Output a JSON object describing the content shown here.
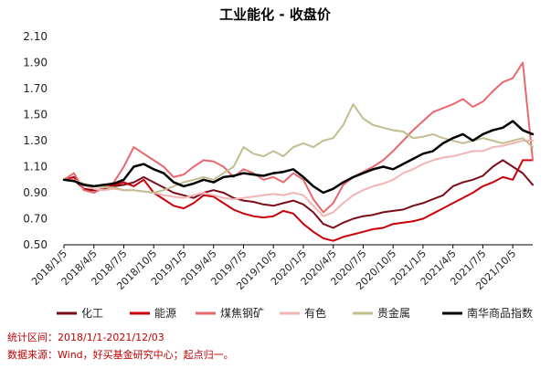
{
  "chart_data": {
    "type": "line",
    "title": "工业能化 - 收盘价",
    "xlabel": "",
    "ylabel": "",
    "ylim": [
      0.5,
      2.1
    ],
    "yticks": [
      "2.10",
      "1.90",
      "1.70",
      "1.50",
      "1.30",
      "1.10",
      "0.90",
      "0.70",
      "0.50"
    ],
    "x_tick_labels": [
      "2018/1/5",
      "2018/4/5",
      "2018/7/5",
      "2018/10/5",
      "2019/1/5",
      "2019/4/5",
      "2019/7/5",
      "2019/10/5",
      "2020/1/5",
      "2020/4/5",
      "2020/7/5",
      "2020/10/5",
      "2021/1/5",
      "2021/4/5",
      "2021/7/5",
      "2021/10/5"
    ],
    "x_months": [
      0,
      3,
      6,
      9,
      12,
      15,
      18,
      21,
      24,
      27,
      30,
      33,
      36,
      39,
      42,
      45
    ],
    "x_range_months": [
      0,
      47
    ],
    "grid": false,
    "legend_position": "bottom",
    "series": [
      {
        "name": "化工",
        "color": "#7b0c1a",
        "width": 2,
        "x": [
          0,
          1,
          2,
          3,
          4,
          5,
          6,
          7,
          8,
          9,
          10,
          11,
          12,
          13,
          14,
          15,
          16,
          17,
          18,
          19,
          20,
          21,
          22,
          23,
          24,
          25,
          26,
          27,
          28,
          29,
          30,
          31,
          32,
          33,
          34,
          35,
          36,
          37,
          38,
          39,
          40,
          41,
          42,
          43,
          44,
          45,
          46,
          47
        ],
        "y": [
          1.0,
          1.0,
          0.93,
          0.92,
          0.93,
          0.95,
          0.96,
          0.98,
          1.02,
          0.98,
          0.94,
          0.9,
          0.88,
          0.86,
          0.9,
          0.92,
          0.9,
          0.86,
          0.84,
          0.83,
          0.81,
          0.8,
          0.82,
          0.84,
          0.81,
          0.75,
          0.66,
          0.63,
          0.67,
          0.7,
          0.72,
          0.73,
          0.75,
          0.76,
          0.77,
          0.8,
          0.82,
          0.85,
          0.88,
          0.95,
          0.98,
          1.0,
          1.03,
          1.1,
          1.15,
          1.1,
          1.05,
          0.96
        ]
      },
      {
        "name": "能源",
        "color": "#c8000a",
        "width": 2,
        "x": [
          0,
          1,
          2,
          3,
          4,
          5,
          6,
          7,
          8,
          9,
          10,
          11,
          12,
          13,
          14,
          15,
          16,
          17,
          18,
          19,
          20,
          21,
          22,
          23,
          24,
          25,
          26,
          27,
          28,
          29,
          30,
          31,
          32,
          33,
          34,
          35,
          36,
          37,
          38,
          39,
          40,
          41,
          42,
          43,
          44,
          45,
          46,
          47
        ],
        "y": [
          1.0,
          1.02,
          0.93,
          0.9,
          0.94,
          0.96,
          0.98,
          0.95,
          1.0,
          0.9,
          0.85,
          0.8,
          0.78,
          0.82,
          0.88,
          0.87,
          0.82,
          0.77,
          0.74,
          0.72,
          0.71,
          0.72,
          0.76,
          0.74,
          0.66,
          0.6,
          0.55,
          0.53,
          0.56,
          0.58,
          0.6,
          0.62,
          0.63,
          0.66,
          0.67,
          0.68,
          0.7,
          0.74,
          0.78,
          0.82,
          0.86,
          0.9,
          0.95,
          0.98,
          1.02,
          1.0,
          1.15,
          1.15
        ]
      },
      {
        "name": "煤焦钢矿",
        "color": "#e8686e",
        "width": 2,
        "x": [
          0,
          1,
          2,
          3,
          4,
          5,
          6,
          7,
          8,
          9,
          10,
          11,
          12,
          13,
          14,
          15,
          16,
          17,
          18,
          19,
          20,
          21,
          22,
          23,
          24,
          25,
          26,
          27,
          28,
          29,
          30,
          31,
          32,
          33,
          34,
          35,
          36,
          37,
          38,
          39,
          40,
          41,
          42,
          43,
          44,
          45,
          46,
          47
        ],
        "y": [
          1.0,
          1.05,
          0.92,
          0.9,
          0.94,
          0.98,
          1.1,
          1.25,
          1.2,
          1.15,
          1.1,
          1.02,
          1.04,
          1.1,
          1.15,
          1.14,
          1.1,
          1.02,
          1.08,
          1.05,
          1.0,
          1.02,
          0.98,
          1.05,
          1.0,
          0.85,
          0.75,
          0.82,
          0.96,
          1.02,
          1.06,
          1.1,
          1.15,
          1.22,
          1.3,
          1.38,
          1.45,
          1.52,
          1.55,
          1.58,
          1.62,
          1.56,
          1.6,
          1.68,
          1.75,
          1.78,
          1.9,
          1.15
        ]
      },
      {
        "name": "有色",
        "color": "#f2b4b4",
        "width": 2,
        "x": [
          0,
          1,
          2,
          3,
          4,
          5,
          6,
          7,
          8,
          9,
          10,
          11,
          12,
          13,
          14,
          15,
          16,
          17,
          18,
          19,
          20,
          21,
          22,
          23,
          24,
          25,
          26,
          27,
          28,
          29,
          30,
          31,
          32,
          33,
          34,
          35,
          36,
          37,
          38,
          39,
          40,
          41,
          42,
          43,
          44,
          45,
          46,
          47
        ],
        "y": [
          1.0,
          1.0,
          0.96,
          0.93,
          0.92,
          0.93,
          0.92,
          0.92,
          0.91,
          0.9,
          0.88,
          0.87,
          0.86,
          0.88,
          0.9,
          0.88,
          0.86,
          0.85,
          0.86,
          0.87,
          0.88,
          0.89,
          0.88,
          0.9,
          0.88,
          0.8,
          0.72,
          0.75,
          0.82,
          0.88,
          0.92,
          0.95,
          0.97,
          1.0,
          1.05,
          1.08,
          1.12,
          1.15,
          1.17,
          1.18,
          1.2,
          1.22,
          1.22,
          1.25,
          1.26,
          1.28,
          1.3,
          1.3
        ]
      },
      {
        "name": "贵金属",
        "color": "#c3bd8f",
        "width": 2,
        "x": [
          0,
          1,
          2,
          3,
          4,
          5,
          6,
          7,
          8,
          9,
          10,
          11,
          12,
          13,
          14,
          15,
          16,
          17,
          18,
          19,
          20,
          21,
          22,
          23,
          24,
          25,
          26,
          27,
          28,
          29,
          30,
          31,
          32,
          33,
          34,
          35,
          36,
          37,
          38,
          39,
          40,
          41,
          42,
          43,
          44,
          45,
          46,
          47
        ],
        "y": [
          1.0,
          0.99,
          0.97,
          0.95,
          0.94,
          0.94,
          0.92,
          0.92,
          0.91,
          0.9,
          0.92,
          0.95,
          0.98,
          1.0,
          1.02,
          1.0,
          1.05,
          1.1,
          1.25,
          1.2,
          1.18,
          1.22,
          1.18,
          1.25,
          1.28,
          1.25,
          1.3,
          1.32,
          1.42,
          1.58,
          1.47,
          1.42,
          1.4,
          1.38,
          1.37,
          1.32,
          1.33,
          1.35,
          1.32,
          1.3,
          1.28,
          1.3,
          1.32,
          1.3,
          1.28,
          1.3,
          1.32,
          1.25
        ]
      },
      {
        "name": "南华商品指数",
        "color": "#000000",
        "width": 2.5,
        "x": [
          0,
          1,
          2,
          3,
          4,
          5,
          6,
          7,
          8,
          9,
          10,
          11,
          12,
          13,
          14,
          15,
          16,
          17,
          18,
          19,
          20,
          21,
          22,
          23,
          24,
          25,
          26,
          27,
          28,
          29,
          30,
          31,
          32,
          33,
          34,
          35,
          36,
          37,
          38,
          39,
          40,
          41,
          42,
          43,
          44,
          45,
          46,
          47
        ],
        "y": [
          1.0,
          0.99,
          0.96,
          0.95,
          0.96,
          0.97,
          1.0,
          1.1,
          1.12,
          1.08,
          1.05,
          0.98,
          0.95,
          0.97,
          1.0,
          0.98,
          1.02,
          1.03,
          1.05,
          1.04,
          1.03,
          1.05,
          1.06,
          1.08,
          1.02,
          0.95,
          0.9,
          0.93,
          0.98,
          1.02,
          1.05,
          1.08,
          1.1,
          1.08,
          1.12,
          1.16,
          1.2,
          1.22,
          1.28,
          1.32,
          1.35,
          1.3,
          1.35,
          1.38,
          1.4,
          1.45,
          1.38,
          1.35
        ]
      }
    ]
  },
  "footnotes": {
    "range": "统计区间：2018/1/1-2021/12/03",
    "source": "数据来源：Wind，好买基金研究中心；起点归一。"
  },
  "colors": {
    "axis": "#000000",
    "footnote": "#c00000"
  }
}
